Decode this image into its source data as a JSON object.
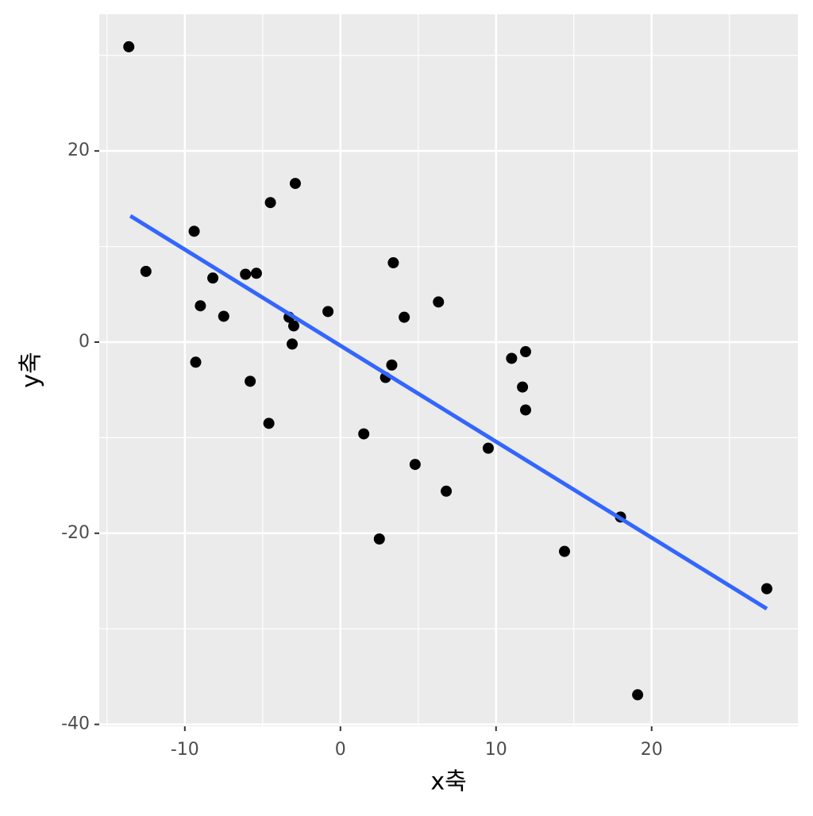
{
  "chart_data": {
    "type": "scatter",
    "x_label": "x축",
    "y_label": "y축",
    "x": [
      -13.6,
      -12.5,
      -9.4,
      -9.0,
      -9.3,
      -8.2,
      -7.5,
      -6.1,
      -5.4,
      -5.8,
      -4.5,
      -4.6,
      -2.9,
      -3.3,
      -3.0,
      -3.1,
      -0.8,
      1.5,
      2.5,
      2.9,
      3.3,
      3.4,
      4.1,
      4.8,
      6.3,
      6.8,
      9.5,
      11.0,
      11.9,
      11.7,
      11.9,
      14.4,
      18.0,
      19.1,
      27.4
    ],
    "y": [
      30.9,
      7.4,
      11.6,
      3.8,
      -2.1,
      6.7,
      2.7,
      7.1,
      7.2,
      -4.1,
      14.6,
      -8.5,
      16.6,
      2.6,
      1.7,
      -0.2,
      3.2,
      -9.6,
      -20.6,
      -3.7,
      -2.4,
      8.3,
      2.6,
      -12.8,
      4.2,
      -15.6,
      -11.1,
      -1.7,
      -1.0,
      -4.7,
      -7.1,
      -21.9,
      -18.3,
      -36.9,
      -25.8
    ],
    "color": "#000000",
    "fit": {
      "x": [
        -13.5,
        27.4
      ],
      "y": [
        13.2,
        -27.9
      ],
      "color": "#3366ff"
    },
    "xlim": [
      -15.5,
      29.4
    ],
    "ylim": [
      -40.2,
      34.3
    ],
    "xticks": [
      -10,
      0,
      10,
      20
    ],
    "yticks": [
      -40,
      -20,
      0,
      20
    ],
    "x_minor_grid": [
      -15,
      -5,
      5,
      15,
      25
    ],
    "y_minor_grid": [
      -30,
      -10,
      10,
      30
    ],
    "grid": true,
    "panel_color": "#ebebeb"
  }
}
